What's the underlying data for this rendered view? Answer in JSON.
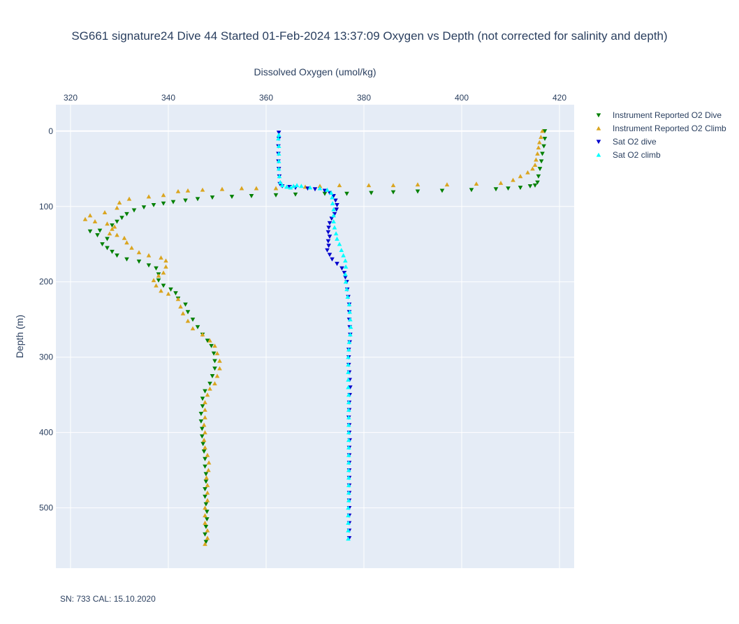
{
  "chart_data": {
    "type": "scatter",
    "title": "SG661 signature24 Dive 44 Started 01-Feb-2024 13:37:09  Oxygen vs Depth (not corrected for salinity and depth)",
    "xlabel": "Dissolved Oxygen (umol/kg)",
    "ylabel": "Depth (m)",
    "xlim": [
      317,
      423
    ],
    "ylim": [
      580,
      -35
    ],
    "x_axis_side": "top",
    "y_reversed": true,
    "x_ticks": [
      320,
      340,
      360,
      380,
      400,
      420
    ],
    "y_ticks": [
      0,
      100,
      200,
      300,
      400,
      500
    ],
    "grid": true,
    "legend_position": "right",
    "annotation": "SN: 733  CAL: 15.10.2020",
    "series": [
      {
        "name": "Instrument Reported O2 Dive",
        "color": "#008000",
        "marker": "triangle-down",
        "points": [
          [
            417,
            0
          ],
          [
            417,
            10
          ],
          [
            416.8,
            20
          ],
          [
            416.5,
            30
          ],
          [
            416.3,
            40
          ],
          [
            416,
            50
          ],
          [
            415.7,
            60
          ],
          [
            415.5,
            68
          ],
          [
            415,
            72
          ],
          [
            414,
            73
          ],
          [
            412,
            75
          ],
          [
            409.5,
            76
          ],
          [
            407,
            77
          ],
          [
            402,
            78
          ],
          [
            396,
            79
          ],
          [
            391,
            80
          ],
          [
            386,
            81
          ],
          [
            381.5,
            82
          ],
          [
            376.5,
            83
          ],
          [
            372,
            83
          ],
          [
            366,
            84
          ],
          [
            362,
            85
          ],
          [
            357,
            86
          ],
          [
            353,
            87
          ],
          [
            349,
            88
          ],
          [
            346,
            90
          ],
          [
            343.5,
            92
          ],
          [
            341,
            94
          ],
          [
            339,
            96
          ],
          [
            337,
            98
          ],
          [
            335,
            101
          ],
          [
            333,
            105
          ],
          [
            331.5,
            110
          ],
          [
            330.5,
            115
          ],
          [
            329.5,
            120
          ],
          [
            328.5,
            125
          ],
          [
            326,
            132
          ],
          [
            324,
            133
          ],
          [
            325.5,
            138
          ],
          [
            327.5,
            143
          ],
          [
            326.5,
            150
          ],
          [
            327.5,
            155
          ],
          [
            328.5,
            160
          ],
          [
            329.5,
            165
          ],
          [
            331.5,
            170
          ],
          [
            334,
            173
          ],
          [
            336,
            178
          ],
          [
            337.5,
            182
          ],
          [
            338,
            190
          ],
          [
            338,
            198
          ],
          [
            339,
            205
          ],
          [
            340.5,
            210
          ],
          [
            341.5,
            215
          ],
          [
            342,
            222
          ],
          [
            343.5,
            230
          ],
          [
            344,
            240
          ],
          [
            345,
            250
          ],
          [
            346,
            260
          ],
          [
            347,
            270
          ],
          [
            348,
            278
          ],
          [
            348.8,
            285
          ],
          [
            349.3,
            295
          ],
          [
            349.5,
            305
          ],
          [
            349.5,
            315
          ],
          [
            349,
            325
          ],
          [
            348.5,
            335
          ],
          [
            347.5,
            345
          ],
          [
            347,
            355
          ],
          [
            347,
            365
          ],
          [
            346.7,
            375
          ],
          [
            346.7,
            385
          ],
          [
            346.9,
            395
          ],
          [
            346.9,
            405
          ],
          [
            347.1,
            415
          ],
          [
            347.3,
            425
          ],
          [
            347.5,
            435
          ],
          [
            347.5,
            445
          ],
          [
            347.7,
            455
          ],
          [
            347.7,
            465
          ],
          [
            347.5,
            475
          ],
          [
            347.5,
            485
          ],
          [
            347.7,
            495
          ],
          [
            347.9,
            505
          ],
          [
            347.9,
            515
          ],
          [
            347.7,
            525
          ],
          [
            347.5,
            535
          ],
          [
            347.7,
            545
          ]
        ]
      },
      {
        "name": "Instrument Reported O2 Climb",
        "color": "#daa520",
        "marker": "triangle-up",
        "points": [
          [
            347.5,
            548
          ],
          [
            348,
            540
          ],
          [
            348,
            530
          ],
          [
            347.5,
            520
          ],
          [
            347.5,
            510
          ],
          [
            347.5,
            500
          ],
          [
            348,
            490
          ],
          [
            348,
            480
          ],
          [
            348,
            470
          ],
          [
            347.8,
            460
          ],
          [
            348.2,
            450
          ],
          [
            348.3,
            440
          ],
          [
            348,
            430
          ],
          [
            347.5,
            420
          ],
          [
            347.3,
            410
          ],
          [
            347.5,
            400
          ],
          [
            347.3,
            390
          ],
          [
            347.5,
            380
          ],
          [
            347.5,
            370
          ],
          [
            347.5,
            360
          ],
          [
            348,
            350
          ],
          [
            348.5,
            342
          ],
          [
            349.5,
            335
          ],
          [
            350,
            325
          ],
          [
            350.5,
            315
          ],
          [
            350.5,
            305
          ],
          [
            350,
            295
          ],
          [
            349.5,
            285
          ],
          [
            348.5,
            278
          ],
          [
            347,
            270
          ],
          [
            345,
            262
          ],
          [
            344,
            252
          ],
          [
            343,
            242
          ],
          [
            342.5,
            233
          ],
          [
            342,
            223
          ],
          [
            340,
            216
          ],
          [
            338.5,
            212
          ],
          [
            337.5,
            205
          ],
          [
            337,
            198
          ],
          [
            338,
            192
          ],
          [
            339,
            188
          ],
          [
            339.5,
            180
          ],
          [
            339.5,
            172
          ],
          [
            338.5,
            168
          ],
          [
            336,
            165
          ],
          [
            334,
            161
          ],
          [
            332.5,
            155
          ],
          [
            331.5,
            148
          ],
          [
            331,
            142
          ],
          [
            329.5,
            138
          ],
          [
            328,
            136
          ],
          [
            328.5,
            130
          ],
          [
            329,
            127
          ],
          [
            327.5,
            123
          ],
          [
            325,
            120
          ],
          [
            323,
            117
          ],
          [
            324,
            112
          ],
          [
            327,
            108
          ],
          [
            329.5,
            102
          ],
          [
            330,
            95
          ],
          [
            332,
            90
          ],
          [
            336,
            87
          ],
          [
            339,
            85
          ],
          [
            342,
            80
          ],
          [
            344,
            79
          ],
          [
            347,
            78
          ],
          [
            351,
            77
          ],
          [
            355,
            76
          ],
          [
            358,
            76
          ],
          [
            362,
            76
          ],
          [
            365,
            75
          ],
          [
            368,
            74
          ],
          [
            371,
            73
          ],
          [
            375,
            72
          ],
          [
            381,
            72
          ],
          [
            386,
            72
          ],
          [
            391,
            71
          ],
          [
            397,
            71
          ],
          [
            403,
            70
          ],
          [
            408,
            69
          ],
          [
            410.5,
            65
          ],
          [
            412,
            60
          ],
          [
            413.5,
            55
          ],
          [
            414.5,
            50
          ],
          [
            415,
            45
          ],
          [
            415.2,
            38
          ],
          [
            415.5,
            30
          ],
          [
            415.7,
            22
          ],
          [
            415.9,
            15
          ],
          [
            416.2,
            8
          ],
          [
            416.5,
            0
          ]
        ]
      },
      {
        "name": "Sat O2 dive",
        "color": "#0000cd",
        "marker": "triangle-down",
        "points": [
          [
            362.6,
            2
          ],
          [
            362.6,
            10
          ],
          [
            362.5,
            20
          ],
          [
            362.5,
            30
          ],
          [
            362.5,
            40
          ],
          [
            362.6,
            50
          ],
          [
            362.7,
            60
          ],
          [
            362.8,
            70
          ],
          [
            363.3,
            73
          ],
          [
            364.8,
            74
          ],
          [
            366,
            75
          ],
          [
            368.5,
            76
          ],
          [
            370,
            77
          ],
          [
            372,
            79
          ],
          [
            373,
            82
          ],
          [
            373.8,
            86
          ],
          [
            374.2,
            92
          ],
          [
            374.5,
            98
          ],
          [
            374.4,
            104
          ],
          [
            374,
            110
          ],
          [
            373.4,
            116
          ],
          [
            373,
            122
          ],
          [
            372.8,
            128
          ],
          [
            372.7,
            134
          ],
          [
            373,
            140
          ],
          [
            372.7,
            146
          ],
          [
            372.8,
            152
          ],
          [
            372.5,
            158
          ],
          [
            373,
            164
          ],
          [
            373.5,
            170
          ],
          [
            374.5,
            176
          ],
          [
            375.5,
            182
          ],
          [
            376,
            188
          ],
          [
            376.2,
            194
          ],
          [
            376.5,
            200
          ],
          [
            376.6,
            210
          ],
          [
            376.8,
            220
          ],
          [
            377,
            230
          ],
          [
            377,
            240
          ],
          [
            377,
            250
          ],
          [
            377.1,
            260
          ],
          [
            377.2,
            270
          ],
          [
            377.1,
            280
          ],
          [
            376.9,
            290
          ],
          [
            376.9,
            300
          ],
          [
            376.9,
            310
          ],
          [
            377,
            320
          ],
          [
            377.1,
            330
          ],
          [
            377.2,
            340
          ],
          [
            377.1,
            350
          ],
          [
            377,
            360
          ],
          [
            377,
            370
          ],
          [
            376.9,
            380
          ],
          [
            377,
            390
          ],
          [
            377,
            400
          ],
          [
            377.1,
            410
          ],
          [
            377,
            420
          ],
          [
            377,
            430
          ],
          [
            377,
            440
          ],
          [
            377,
            450
          ],
          [
            377,
            460
          ],
          [
            377,
            470
          ],
          [
            377,
            480
          ],
          [
            377,
            490
          ],
          [
            377,
            500
          ],
          [
            377,
            510
          ],
          [
            377,
            520
          ],
          [
            377,
            530
          ],
          [
            377,
            540
          ]
        ]
      },
      {
        "name": "Sat O2 climb",
        "color": "#00ffff",
        "marker": "triangle-up",
        "points": [
          [
            376.8,
            541
          ],
          [
            376.8,
            530
          ],
          [
            376.8,
            520
          ],
          [
            376.8,
            510
          ],
          [
            376.8,
            500
          ],
          [
            376.9,
            490
          ],
          [
            376.9,
            480
          ],
          [
            376.9,
            470
          ],
          [
            376.9,
            460
          ],
          [
            376.9,
            450
          ],
          [
            376.9,
            440
          ],
          [
            376.9,
            430
          ],
          [
            376.9,
            420
          ],
          [
            376.9,
            410
          ],
          [
            376.9,
            400
          ],
          [
            376.9,
            390
          ],
          [
            376.9,
            380
          ],
          [
            376.9,
            370
          ],
          [
            376.9,
            360
          ],
          [
            376.9,
            350
          ],
          [
            376.8,
            340
          ],
          [
            376.8,
            330
          ],
          [
            376.8,
            320
          ],
          [
            376.8,
            310
          ],
          [
            376.8,
            300
          ],
          [
            376.9,
            290
          ],
          [
            377,
            280
          ],
          [
            377.2,
            270
          ],
          [
            377.3,
            260
          ],
          [
            377.2,
            250
          ],
          [
            377.1,
            240
          ],
          [
            377,
            230
          ],
          [
            376.7,
            220
          ],
          [
            376.5,
            210
          ],
          [
            376.3,
            200
          ],
          [
            376.2,
            190
          ],
          [
            376.3,
            180
          ],
          [
            376.2,
            172
          ],
          [
            375.8,
            165
          ],
          [
            375.4,
            158
          ],
          [
            375,
            150
          ],
          [
            374.5,
            143
          ],
          [
            374.3,
            136
          ],
          [
            374,
            128
          ],
          [
            373.8,
            120
          ],
          [
            373.8,
            112
          ],
          [
            373.8,
            104
          ],
          [
            373.6,
            96
          ],
          [
            373.5,
            88
          ],
          [
            373.3,
            82
          ],
          [
            372.5,
            78
          ],
          [
            371,
            76
          ],
          [
            369,
            75
          ],
          [
            367.2,
            73
          ],
          [
            366.3,
            72
          ],
          [
            365.6,
            73
          ],
          [
            365,
            75
          ],
          [
            364.2,
            74
          ],
          [
            363.3,
            72
          ],
          [
            362.9,
            68
          ],
          [
            362.7,
            60
          ],
          [
            362.6,
            50
          ],
          [
            362.6,
            40
          ],
          [
            362.6,
            30
          ],
          [
            362.6,
            20
          ],
          [
            362.5,
            10
          ],
          [
            362.6,
            5
          ]
        ]
      }
    ]
  }
}
